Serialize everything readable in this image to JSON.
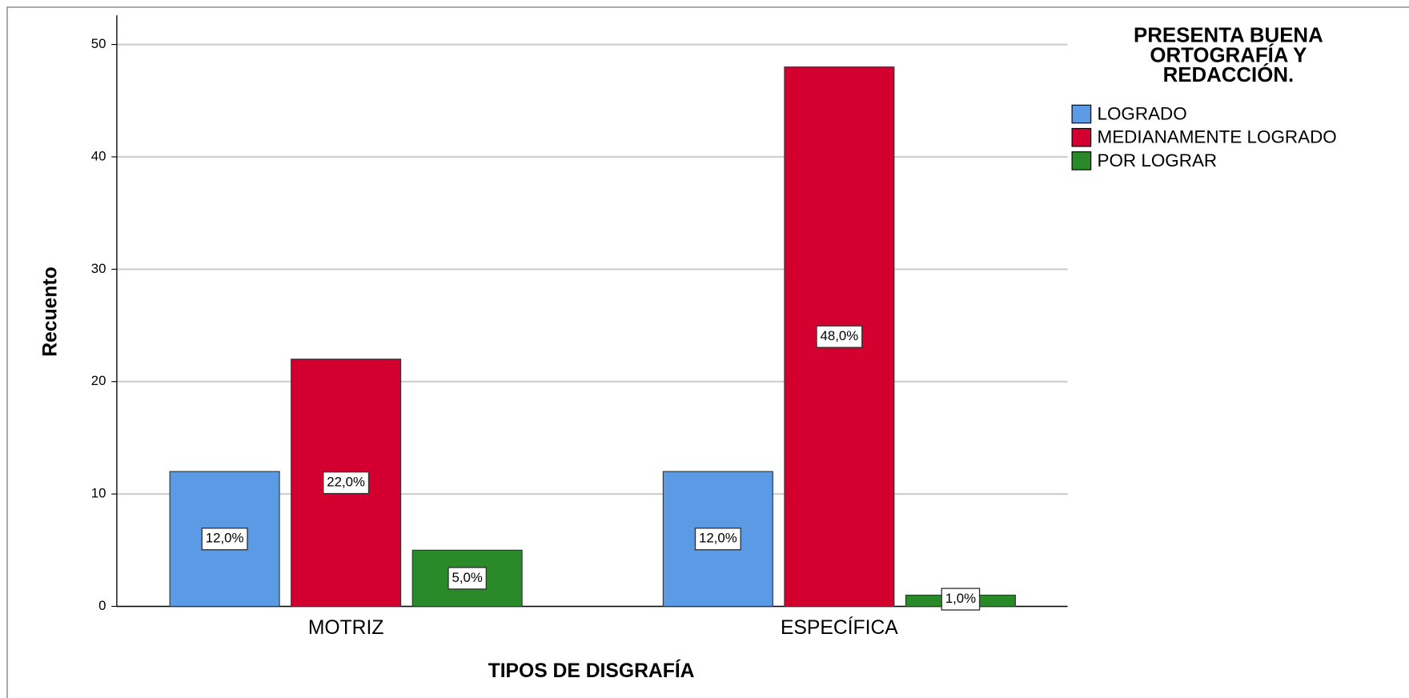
{
  "chart_data": {
    "type": "bar",
    "categories": [
      "MOTRIZ",
      "ESPECÍFICA"
    ],
    "series": [
      {
        "name": "LOGRADO",
        "color": "#5b9be6",
        "values": [
          12,
          12
        ],
        "value_labels": [
          "12,0%",
          "12,0%"
        ]
      },
      {
        "name": "MEDIANAMENTE LOGRADO",
        "color": "#d3002f",
        "values": [
          22,
          48
        ],
        "value_labels": [
          "22,0%",
          "48,0%"
        ]
      },
      {
        "name": "POR LOGRAR",
        "color": "#2a8a2a",
        "values": [
          5,
          1
        ],
        "value_labels": [
          "5,0%",
          "1,0%"
        ]
      }
    ],
    "ylim": [
      0,
      52.6
    ],
    "yticks": [
      0,
      10,
      20,
      30,
      40,
      50
    ],
    "grid": true,
    "ylabel": "Recuento",
    "xlabel": "TIPOS DE DISGRAFÍA",
    "legend_title": "PRESENTA BUENA ORTOGRAFÍA Y REDACCIÓN.",
    "legend": "right"
  }
}
